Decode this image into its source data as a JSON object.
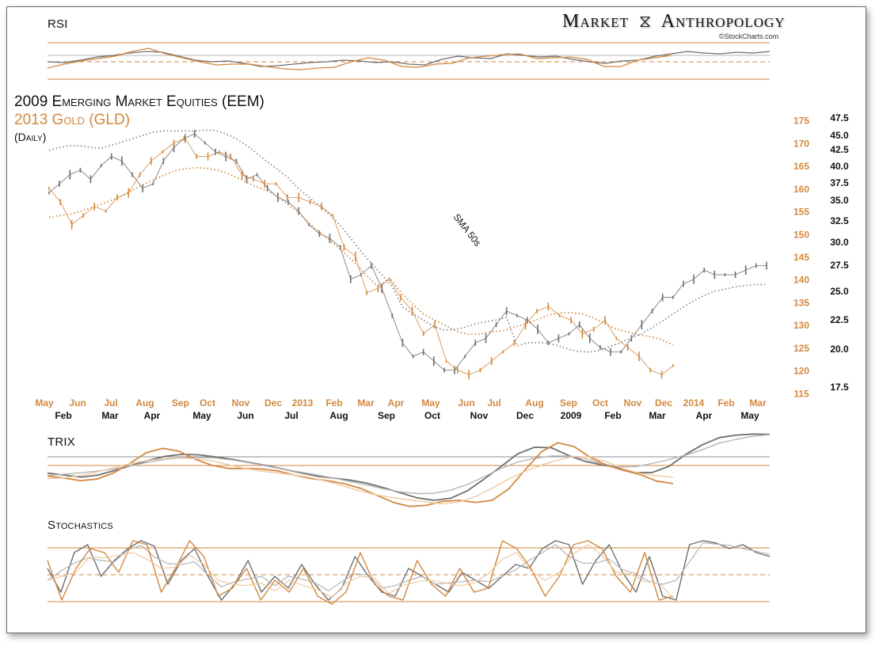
{
  "brand": {
    "left": "Market",
    "icon": "dna-helix-icon",
    "right": "Anthropology",
    "copyright": "©StockCharts.com"
  },
  "panels": {
    "rsi_label": "RSI",
    "trix_label": "TRIX",
    "stoch_label": "Stochastics"
  },
  "colors": {
    "eem": "#6e6e6e",
    "eem_light": "#b5b5b5",
    "gld": "#d2883f",
    "gld_light": "#f0c9a1",
    "sma": "#8c8c8c"
  },
  "chart_data": {
    "type": "line",
    "title": "2009 Emerging Market Equities (EEM)",
    "subtitle": "2013  Gold (GLD)",
    "period": "(Daily)",
    "annotation": "SMA 50s",
    "gld_axis": {
      "label_values": [
        175,
        170,
        165,
        160,
        155,
        150,
        145,
        140,
        135,
        130,
        125,
        120,
        115
      ],
      "ylim": [
        114,
        176
      ]
    },
    "eem_axis": {
      "label_values": [
        "47.5",
        "45.0",
        "42.5",
        "40.0",
        "37.5",
        "35.0",
        "32.5",
        "30.0",
        "27.5",
        "25.0",
        "22.5",
        "20.0",
        "17.5"
      ]
    },
    "x_gld_months": [
      "May",
      "Jun",
      "Jul",
      "Aug",
      "Sep",
      "Oct",
      "Nov",
      "Dec",
      "2013",
      "Feb",
      "Mar",
      "Apr",
      "May",
      "Jun",
      "Jul",
      "Aug",
      "Sep",
      "Oct",
      "Nov",
      "Dec",
      "2014",
      "Feb",
      "Mar"
    ],
    "x_eem_months": [
      "Feb",
      "Mar",
      "Apr",
      "May",
      "Jun",
      "Jul",
      "Aug",
      "Sep",
      "Oct",
      "Nov",
      "Dec",
      "2009",
      "Feb",
      "Mar",
      "Apr",
      "May"
    ],
    "series": [
      {
        "name": "2009 Emerging Market Equities (EEM)",
        "key": "eem",
        "values": [
          159,
          161,
          163,
          164,
          162,
          165,
          167,
          166,
          163,
          160,
          161,
          166,
          169,
          171,
          172,
          170,
          168,
          167,
          166,
          162,
          163,
          160,
          158,
          157,
          155,
          152,
          150,
          149,
          147,
          140,
          141,
          143,
          138,
          132,
          126,
          123,
          124,
          122,
          120,
          120,
          123,
          126,
          127,
          130,
          133,
          132,
          131,
          129,
          126,
          127,
          128,
          130,
          127,
          125,
          124,
          124,
          127,
          130,
          133,
          136,
          136,
          139,
          140,
          142,
          141,
          141,
          141,
          142,
          143,
          143
        ]
      },
      {
        "name": "2013  Gold (GLD)",
        "key": "gld",
        "values": [
          160,
          157,
          152,
          154,
          156,
          155,
          158,
          159,
          163,
          166,
          168,
          170,
          171,
          167,
          167,
          168,
          167,
          163,
          162,
          161,
          161,
          158,
          158,
          157,
          156,
          154,
          147,
          145,
          137,
          138,
          140,
          136,
          133,
          128,
          130,
          122,
          120,
          119,
          120,
          122,
          124,
          126,
          130,
          133,
          134,
          132,
          131,
          128,
          129,
          131,
          127,
          125,
          123,
          120,
          119,
          121
        ]
      },
      {
        "name": "SMA 50s",
        "key": "sma",
        "values": []
      }
    ],
    "indicators": {
      "rsi": {
        "eem": [
          50,
          49,
          52,
          56,
          58,
          61,
          63,
          62,
          57,
          52,
          50,
          51,
          48,
          44,
          45,
          47,
          49,
          50,
          52,
          51,
          49,
          50,
          47,
          46,
          53,
          57,
          55,
          54,
          60,
          58,
          56,
          57,
          53,
          50,
          48,
          51,
          52,
          57,
          60,
          63,
          61,
          60,
          62,
          61,
          63
        ],
        "gld": [
          42,
          47,
          51,
          54,
          57,
          63,
          67,
          60,
          55,
          50,
          46,
          47,
          47,
          44,
          41,
          40,
          42,
          43,
          50,
          55,
          52,
          44,
          43,
          47,
          48,
          55,
          57,
          59,
          60,
          54,
          55,
          56,
          53,
          44,
          44,
          52,
          55,
          58
        ]
      },
      "trix": {
        "eem": [
          52,
          48,
          46,
          48,
          52,
          55,
          58,
          62,
          63,
          62,
          61,
          59,
          57,
          55,
          53,
          50,
          48,
          46,
          46,
          44,
          40,
          37,
          34,
          30,
          32,
          38,
          45,
          55,
          63,
          70,
          68,
          62,
          55,
          56,
          55,
          50,
          46,
          55,
          62,
          70,
          74,
          76,
          75,
          76
        ],
        "gld": [
          50,
          46,
          44,
          45,
          49,
          56,
          64,
          70,
          65,
          58,
          54,
          53,
          52,
          54,
          52,
          48,
          46,
          45,
          44,
          40,
          36,
          30,
          26,
          28,
          32,
          34,
          30,
          28,
          38,
          52,
          66,
          74,
          70,
          58,
          52,
          55,
          48,
          44,
          42
        ]
      },
      "stochastics": {
        "eem": [
          60,
          30,
          80,
          90,
          50,
          70,
          85,
          95,
          88,
          40,
          70,
          85,
          50,
          20,
          40,
          70,
          30,
          50,
          35,
          65,
          40,
          20,
          35,
          75,
          50,
          30,
          25,
          60,
          50,
          40,
          30,
          55,
          45,
          35,
          50,
          65,
          60,
          85,
          95,
          90,
          40,
          70,
          90,
          55,
          30,
          75,
          25,
          20,
          90,
          95,
          92,
          85,
          90,
          80,
          75
        ],
        "gld": [
          70,
          20,
          60,
          85,
          80,
          55,
          95,
          90,
          30,
          60,
          95,
          75,
          25,
          35,
          60,
          20,
          45,
          30,
          60,
          25,
          15,
          30,
          80,
          40,
          25,
          20,
          70,
          40,
          25,
          60,
          30,
          35,
          95,
          85,
          60,
          25,
          50,
          90,
          95,
          85,
          50,
          30,
          80,
          20,
          25
        ]
      }
    }
  }
}
